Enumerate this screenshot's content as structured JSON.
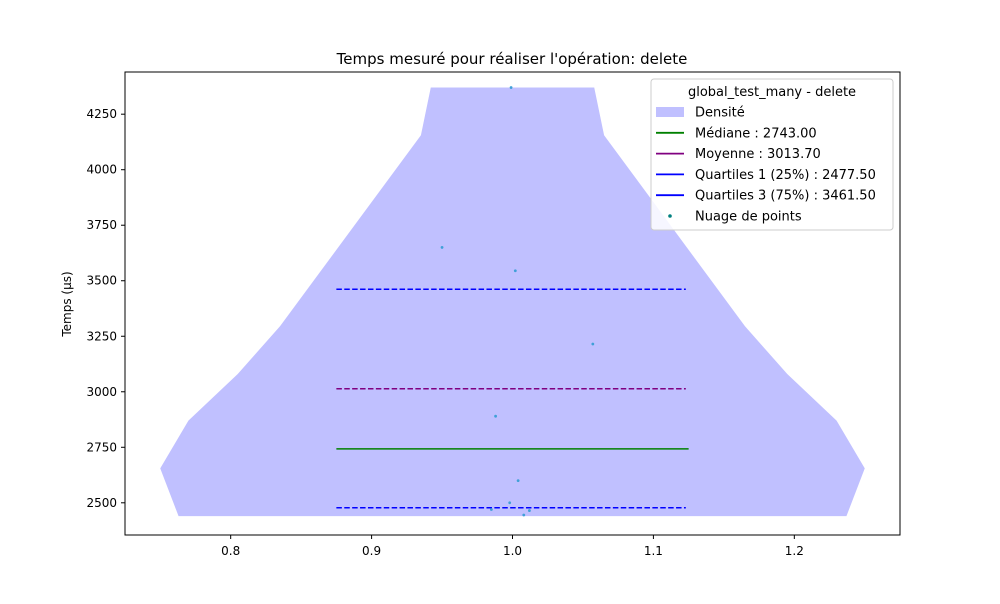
{
  "chart_data": {
    "type": "violin",
    "title": "Temps mesuré pour réaliser l'opération: delete",
    "xlabel": "",
    "ylabel": "Temps (µs)",
    "xlim": [
      0.725,
      1.275
    ],
    "ylim": [
      2355,
      4440
    ],
    "x_ticks": [
      0.8,
      0.9,
      1.0,
      1.1,
      1.2
    ],
    "y_ticks": [
      2500,
      2750,
      3000,
      3250,
      3500,
      3750,
      4000,
      4250
    ],
    "legend": {
      "title": "global_test_many - delete",
      "position": "top-right",
      "entries": [
        {
          "label": "Densité",
          "color": "#c0c0ff",
          "kind": "patch"
        },
        {
          "label": "Médiane : 2743.00",
          "color": "#008000",
          "kind": "line"
        },
        {
          "label": "Moyenne : 3013.70",
          "color": "#800080",
          "kind": "line"
        },
        {
          "label": "Quartiles 1 (25%) : 2477.50",
          "color": "#0000ff",
          "kind": "line"
        },
        {
          "label": "Quartiles 3 (75%) : 3461.50",
          "color": "#0000ff",
          "kind": "line"
        },
        {
          "label": "Nuage de points",
          "color": "#008080",
          "kind": "point"
        }
      ]
    },
    "density": {
      "center": 1.0,
      "color": "#c0c0ff",
      "profile": [
        [
          2440,
          0.237
        ],
        [
          2655,
          0.25
        ],
        [
          2870,
          0.23
        ],
        [
          3080,
          0.195
        ],
        [
          3295,
          0.165
        ],
        [
          3510,
          0.14
        ],
        [
          3725,
          0.115
        ],
        [
          3940,
          0.09
        ],
        [
          4155,
          0.065
        ],
        [
          4370,
          0.058
        ]
      ]
    },
    "lines": [
      {
        "name": "median",
        "value": 2743.0,
        "x_from": 0.875,
        "x_to": 1.125,
        "color": "#008000",
        "dashed": false
      },
      {
        "name": "mean",
        "value": 3013.7,
        "x_from": 0.875,
        "x_to": 1.123,
        "color": "#800080",
        "dashed": true
      },
      {
        "name": "q1",
        "value": 2477.5,
        "x_from": 0.875,
        "x_to": 1.123,
        "color": "#0000ff",
        "dashed": true
      },
      {
        "name": "q3",
        "value": 3461.5,
        "x_from": 0.875,
        "x_to": 1.123,
        "color": "#0000ff",
        "dashed": true
      }
    ],
    "points": [
      {
        "x": 0.999,
        "y": 4370
      },
      {
        "x": 0.95,
        "y": 3650
      },
      {
        "x": 1.002,
        "y": 3545
      },
      {
        "x": 1.057,
        "y": 3215
      },
      {
        "x": 0.988,
        "y": 2890
      },
      {
        "x": 1.004,
        "y": 2600
      },
      {
        "x": 0.998,
        "y": 2500
      },
      {
        "x": 0.985,
        "y": 2470
      },
      {
        "x": 1.012,
        "y": 2465
      },
      {
        "x": 1.008,
        "y": 2445
      }
    ]
  }
}
